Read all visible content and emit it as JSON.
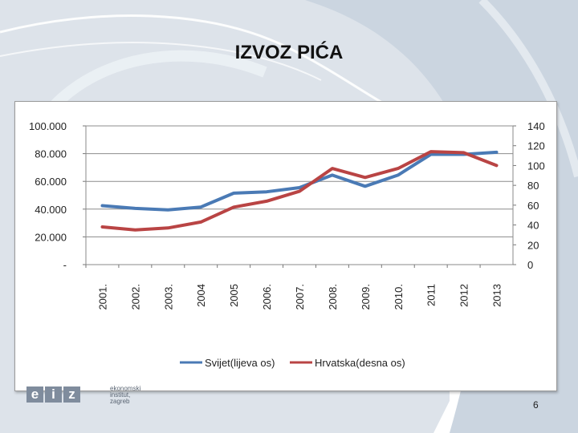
{
  "slide": {
    "title": "IZVOZ PIĆA",
    "page_number": "6"
  },
  "logo": {
    "letters": [
      "e",
      "i",
      "z"
    ],
    "subtitle_lines": [
      "ekonomski",
      "institut,",
      "zagreb"
    ]
  },
  "colors": {
    "series_world": "#4a7ab5",
    "series_croatia": "#b94444",
    "background_swirl": "#c9d3df",
    "gridline": "#8c8c8c"
  },
  "chart_data": {
    "type": "line",
    "title": "",
    "categories": [
      "2001.",
      "2002.",
      "2003.",
      "2004",
      "2005",
      "2006.",
      "2007.",
      "2008.",
      "2009.",
      "2010.",
      "2011",
      "2012",
      "2013"
    ],
    "y_left": {
      "ticks": [
        "-",
        "20.000",
        "40.000",
        "60.000",
        "80.000",
        "100.000"
      ],
      "range": [
        0,
        100000
      ]
    },
    "y_right": {
      "ticks": [
        "0",
        "20",
        "40",
        "60",
        "80",
        "100",
        "120",
        "140"
      ],
      "range": [
        0,
        140
      ]
    },
    "grid": true,
    "legend_position": "bottom",
    "series": [
      {
        "name": "Svijet(lijeva os)",
        "axis": "left",
        "color": "#4a7ab5",
        "values": [
          42500,
          40500,
          39500,
          41500,
          51500,
          52500,
          55500,
          64500,
          56500,
          64500,
          79500,
          79500,
          81000
        ]
      },
      {
        "name": "Hrvatska(desna os)",
        "axis": "right",
        "color": "#b94444",
        "values": [
          38,
          35,
          37,
          43,
          58,
          64,
          74,
          97,
          88,
          97,
          114,
          113,
          100
        ]
      }
    ]
  }
}
